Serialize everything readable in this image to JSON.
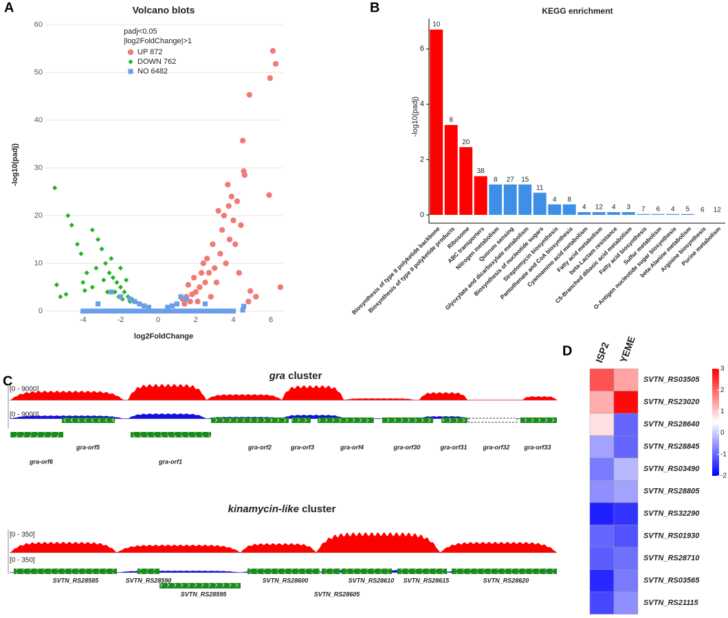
{
  "chart_data": [
    {
      "panel": "A",
      "type": "scatter",
      "title": "Volcano blots",
      "xlabel": "log2FoldChange",
      "ylabel": "-log10(padj)",
      "legend_title": [
        "padj<0.05",
        "|log2FoldChange|>1"
      ],
      "legend": "upper-center",
      "series": [
        {
          "name": "UP 872",
          "color": "#f07b76",
          "marker": "circle",
          "x": [
            6.1,
            6.25,
            5.95,
            4.85,
            4.5,
            4.55,
            4.6,
            5.9,
            6.5,
            3.7,
            3.9,
            4.2,
            4.4,
            3.5,
            3.8,
            3.3,
            3.0,
            2.7,
            2.5,
            2.2,
            2.0,
            1.8,
            1.5,
            1.3,
            3.4,
            4.1,
            3.6,
            4.3,
            2.9,
            3.1,
            4.8,
            5.2,
            4.9,
            2.4,
            1.9,
            1.6,
            2.6,
            3.2,
            4.0,
            3.75,
            2.1,
            2.8,
            1.4,
            1.7,
            2.3
          ],
          "values": [
            54.5,
            51.8,
            48.8,
            45.3,
            35.7,
            29.3,
            28.5,
            24.3,
            5,
            26.5,
            24,
            23,
            18,
            20,
            15,
            12,
            9,
            8,
            6,
            5,
            4,
            3.5,
            3,
            2.5,
            17,
            14,
            10,
            8,
            14,
            6,
            2,
            3,
            4.2,
            10,
            7,
            5.5,
            11,
            21,
            19,
            22,
            2,
            3,
            1.5,
            2,
            8
          ]
        },
        {
          "name": "DOWN 762",
          "color": "#22b422",
          "marker": "diamond",
          "x": [
            -5.5,
            -4.8,
            -4.6,
            -4.3,
            -4.1,
            -3.5,
            -3.2,
            -3.0,
            -2.8,
            -2.6,
            -2.4,
            -2.2,
            -2.0,
            -1.8,
            -1.6,
            -1.4,
            -1.2,
            -3.8,
            -4.0,
            -5.4,
            -4.9,
            -5.2,
            -3.5,
            -2.9,
            -2.5,
            -3.3,
            -2.0,
            -1.7,
            -2.3,
            -3.9,
            -2.1,
            -1.9,
            -2.7,
            -1.5
          ],
          "values": [
            25.8,
            20,
            18,
            14,
            12,
            17,
            15,
            13,
            10,
            8,
            7,
            6,
            5,
            4,
            3,
            2.5,
            2,
            8,
            6,
            5.5,
            3.5,
            3,
            5,
            6.5,
            11,
            9,
            9,
            6.5,
            4,
            4.3,
            3,
            2.5,
            4,
            2
          ]
        },
        {
          "name": "NO 6482",
          "color": "#6b9ee8",
          "marker": "square",
          "x": [
            -4.0,
            -3.75,
            -3.5,
            -3.25,
            -3.0,
            -2.75,
            -2.5,
            -2.25,
            -2.0,
            -1.75,
            -1.5,
            -1.25,
            -1.0,
            -0.75,
            -0.5,
            -0.25,
            0.0,
            0.25,
            0.5,
            0.75,
            1.0,
            1.25,
            1.5,
            1.75,
            2.0,
            2.25,
            2.5,
            2.75,
            3.0,
            3.25,
            3.5,
            3.75,
            4.0,
            -2.5,
            -2.0,
            -1.5,
            -1.0,
            -0.5,
            0.5,
            1.0,
            1.5,
            -3.2,
            4.5,
            4.55,
            2.5,
            1.2,
            -1.25,
            -0.75,
            0.75
          ],
          "values": [
            0,
            0,
            0,
            0,
            0,
            0,
            0,
            0,
            0,
            0,
            0,
            0,
            0,
            0,
            0,
            0,
            0,
            0,
            0,
            0,
            0,
            0,
            0,
            0,
            0,
            0,
            0,
            0,
            0,
            0,
            0,
            0,
            0,
            4,
            3,
            2.5,
            1.5,
            0.8,
            0.8,
            1.5,
            2.5,
            1.5,
            0.2,
            1,
            1.5,
            3,
            2,
            1.1,
            1.1
          ]
        }
      ],
      "xlim": [
        -6,
        6.65
      ],
      "ylim": [
        0,
        62
      ],
      "xticks": [
        -4,
        -2,
        0,
        2,
        4,
        6
      ],
      "yticks": [
        0,
        10,
        20,
        30,
        40,
        50,
        60
      ],
      "grid": true
    },
    {
      "panel": "B",
      "type": "bar",
      "title": "KEGG enrichment",
      "ylabel": "-log10(padj)",
      "categories": [
        "Biosynthesis of type II polyketide backbone",
        "Biosynthesis of type II polyketide products",
        "Ribosome",
        "ABC transporters",
        "Nitrogen metabolism",
        "Quorum sensing",
        "Glyoxylate and dicarboxylate metabolism",
        "Biosynthesis of nucleotide sugars",
        "Streptomycin biosynthesis",
        "Pantothenate and CoA biosynthesis",
        "Cyanoamino acid metabolism",
        "Fatty acid metabolism",
        "beta-Lactam resistance",
        "C5-Branched dibasic acid metabolism",
        "Fatty acid biosynthesis",
        "Sulfur metabolism",
        "O-Antigen nucleotide sugar biosynthesis",
        "beta-Alanine metabolism",
        "Arginine biosynthesis",
        "Purine metabolism"
      ],
      "values": [
        6.7,
        3.25,
        2.45,
        1.4,
        1.1,
        1.1,
        1.1,
        0.8,
        0.38,
        0.38,
        0.1,
        0.1,
        0.1,
        0.1,
        0.03,
        0.03,
        0.03,
        0.03,
        0.0,
        0.0
      ],
      "gene_counts": [
        10,
        8,
        20,
        38,
        8,
        27,
        15,
        11,
        4,
        8,
        4,
        12,
        4,
        3,
        7,
        6,
        4,
        5,
        6,
        12
      ],
      "colors": [
        "#ff0000",
        "#ff0000",
        "#ff0000",
        "#ff0000",
        "#3d8fe8",
        "#3d8fe8",
        "#3d8fe8",
        "#3d8fe8",
        "#3d8fe8",
        "#3d8fe8",
        "#3d8fe8",
        "#3d8fe8",
        "#3d8fe8",
        "#3d8fe8",
        "#3d8fe8",
        "#3d8fe8",
        "#3d8fe8",
        "#3d8fe8",
        "#3d8fe8",
        "#3d8fe8"
      ],
      "ylim": [
        -0.3,
        7.1
      ],
      "yticks": [
        0,
        2,
        4,
        6
      ]
    },
    {
      "panel": "D",
      "type": "heatmap",
      "columns": [
        "ISP2",
        "YEME"
      ],
      "rows": [
        "SVTN_RS03505",
        "SVTN_RS23020",
        "SVTN_RS28640",
        "SVTN_RS28845",
        "SVTN_RS03490",
        "SVTN_RS28805",
        "SVTN_RS32290",
        "SVTN_RS01930",
        "SVTN_RS28710",
        "SVTN_RS03565",
        "SVTN_RS21115"
      ],
      "values": [
        [
          2.2,
          1.4
        ],
        [
          1.3,
          2.9
        ],
        [
          0.8,
          -1.0
        ],
        [
          -0.4,
          -1.0
        ],
        [
          -0.8,
          -0.2
        ],
        [
          -0.6,
          -0.4
        ],
        [
          -1.7,
          -1.5
        ],
        [
          -1.0,
          -1.2
        ],
        [
          -1.1,
          -0.9
        ],
        [
          -1.6,
          -0.8
        ],
        [
          -1.3,
          -0.6
        ]
      ],
      "zlim": [
        -2,
        3
      ],
      "zticks": [
        -2,
        -1,
        0,
        1,
        2,
        3
      ],
      "colors": [
        "#0000ff",
        "#ffffff",
        "#ff0000"
      ]
    }
  ],
  "gene_tracks": {
    "panel": "C",
    "clusters": [
      {
        "title_italic": "gra",
        "title_rest": "cluster",
        "ranges": [
          "[0 - 9000]",
          "[0 - 9000]"
        ],
        "genes": [
          "gra-orf5",
          "gra-orf6",
          "gra-orf1",
          "gra-orf2",
          "gra-orf3",
          "gra-orf4",
          "gra-orf30",
          "gra-orf31",
          "gra-orf32",
          "gra-orf33"
        ]
      },
      {
        "title_italic": "kinamycin-like",
        "title_rest": "cluster",
        "ranges": [
          "[0 - 350]",
          "[0 - 350]"
        ],
        "genes": [
          "SVTN_RS28585",
          "SVTN_RS28590",
          "SVTN_RS28595",
          "SVTN_RS28600",
          "SVTN_RS28605",
          "SVTN_RS28610",
          "SVTN_RS28615",
          "SVTN_RS28620"
        ]
      }
    ]
  }
}
